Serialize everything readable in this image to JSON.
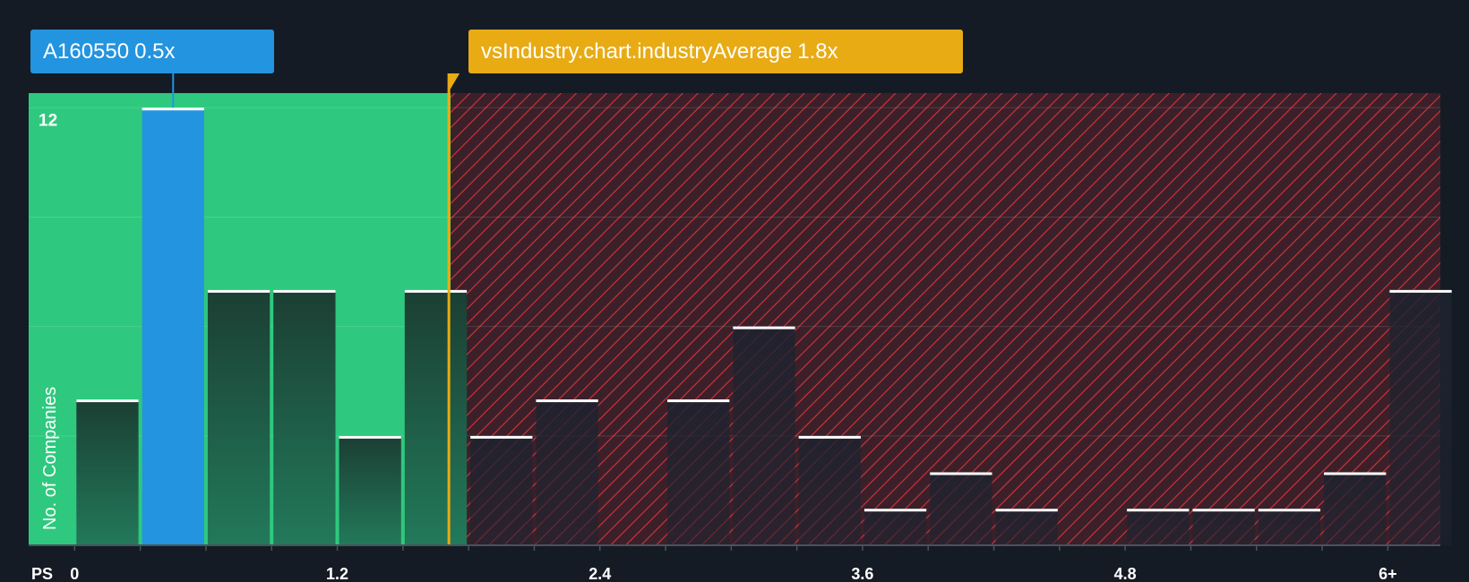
{
  "chart_data": {
    "type": "bar",
    "title": "",
    "xlabel": "PS",
    "ylabel": "No. of Companies",
    "bin_width": 0.3,
    "xlim": [
      -0.21,
      6.24
    ],
    "ylim": [
      0,
      12.4
    ],
    "x_ticks": [
      {
        "value": 0,
        "label": "0"
      },
      {
        "value": 1.2,
        "label": "1.2"
      },
      {
        "value": 2.4,
        "label": "2.4"
      },
      {
        "value": 3.6,
        "label": "3.6"
      },
      {
        "value": 4.8,
        "label": "4.8"
      },
      {
        "value": 6.0,
        "label": "6+"
      }
    ],
    "y_ticks": [
      {
        "value": 12,
        "label": "12"
      }
    ],
    "gridlines": [
      0,
      3,
      6,
      9,
      12
    ],
    "bins": [
      {
        "start": 0.0,
        "count": 4
      },
      {
        "start": 0.3,
        "count": 12,
        "highlight": true
      },
      {
        "start": 0.6,
        "count": 7
      },
      {
        "start": 0.9,
        "count": 7
      },
      {
        "start": 1.2,
        "count": 3
      },
      {
        "start": 1.5,
        "count": 7
      },
      {
        "start": 1.8,
        "count": 3
      },
      {
        "start": 2.1,
        "count": 4
      },
      {
        "start": 2.4,
        "count": 0
      },
      {
        "start": 2.7,
        "count": 4
      },
      {
        "start": 3.0,
        "count": 6
      },
      {
        "start": 3.3,
        "count": 3
      },
      {
        "start": 3.6,
        "count": 1
      },
      {
        "start": 3.9,
        "count": 2
      },
      {
        "start": 4.2,
        "count": 1
      },
      {
        "start": 4.5,
        "count": 0
      },
      {
        "start": 4.8,
        "count": 1
      },
      {
        "start": 5.1,
        "count": 1
      },
      {
        "start": 5.4,
        "count": 1
      },
      {
        "start": 5.7,
        "count": 2
      },
      {
        "start": 6.0,
        "count": 7
      }
    ],
    "company": {
      "ticker": "A160550",
      "value": 0.5,
      "label": "0.5x"
    },
    "industry_average": {
      "label": "vsIndustry.chart.industryAverage",
      "value": 1.8,
      "value_label": "1.8x"
    },
    "undervalued_zone_end": 1.8
  },
  "colors": {
    "background": "#151b24",
    "undervalued_zone": "#2ec97e",
    "overvalued_zone": "#3b2029",
    "hatch": "#d6343c",
    "company_bar": "#2394df",
    "industry_marker": "#e8ab14",
    "bar_cap": "#ffffff",
    "text": "#ffffff"
  }
}
